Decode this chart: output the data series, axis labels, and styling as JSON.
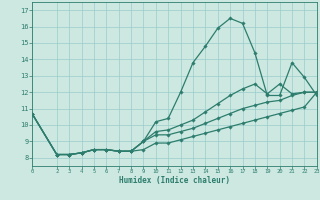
{
  "xlabel": "Humidex (Indice chaleur)",
  "xlim": [
    0,
    23
  ],
  "ylim": [
    7.5,
    17.5
  ],
  "yticks": [
    8,
    9,
    10,
    11,
    12,
    13,
    14,
    15,
    16,
    17
  ],
  "xticks": [
    0,
    2,
    3,
    4,
    5,
    6,
    7,
    8,
    9,
    10,
    11,
    12,
    13,
    14,
    15,
    16,
    17,
    18,
    19,
    20,
    21,
    22,
    23
  ],
  "bg_color": "#cce8e0",
  "grid_color": "#99cccc",
  "line_color": "#2d7d6e",
  "lines": [
    {
      "x": [
        0,
        2,
        3,
        4,
        5,
        6,
        7,
        8,
        9,
        10,
        11,
        12,
        13,
        14,
        15,
        16,
        17,
        18,
        19,
        20,
        21,
        22,
        23
      ],
      "y": [
        10.7,
        8.2,
        8.2,
        8.3,
        8.5,
        8.5,
        8.4,
        8.4,
        9.0,
        10.2,
        10.4,
        12.0,
        13.8,
        14.8,
        15.9,
        16.5,
        16.2,
        14.4,
        11.8,
        11.8,
        13.8,
        12.9,
        11.8
      ]
    },
    {
      "x": [
        0,
        2,
        3,
        4,
        5,
        6,
        7,
        8,
        9,
        10,
        11,
        12,
        13,
        14,
        15,
        16,
        17,
        18,
        19,
        20,
        21,
        22,
        23
      ],
      "y": [
        10.7,
        8.2,
        8.2,
        8.3,
        8.5,
        8.5,
        8.4,
        8.4,
        9.0,
        9.6,
        9.7,
        10.0,
        10.3,
        10.8,
        11.3,
        11.8,
        12.2,
        12.5,
        11.9,
        12.5,
        11.9,
        12.0,
        12.0
      ]
    },
    {
      "x": [
        0,
        2,
        3,
        4,
        5,
        6,
        7,
        8,
        9,
        10,
        11,
        12,
        13,
        14,
        15,
        16,
        17,
        18,
        19,
        20,
        21,
        22,
        23
      ],
      "y": [
        10.7,
        8.2,
        8.2,
        8.3,
        8.5,
        8.5,
        8.4,
        8.4,
        9.0,
        9.4,
        9.4,
        9.6,
        9.8,
        10.1,
        10.4,
        10.7,
        11.0,
        11.2,
        11.4,
        11.5,
        11.8,
        12.0,
        12.0
      ]
    },
    {
      "x": [
        0,
        2,
        3,
        4,
        5,
        6,
        7,
        8,
        9,
        10,
        11,
        12,
        13,
        14,
        15,
        16,
        17,
        18,
        19,
        20,
        21,
        22,
        23
      ],
      "y": [
        10.7,
        8.2,
        8.2,
        8.3,
        8.5,
        8.5,
        8.4,
        8.4,
        8.5,
        8.9,
        8.9,
        9.1,
        9.3,
        9.5,
        9.7,
        9.9,
        10.1,
        10.3,
        10.5,
        10.7,
        10.9,
        11.1,
        12.0
      ]
    }
  ]
}
